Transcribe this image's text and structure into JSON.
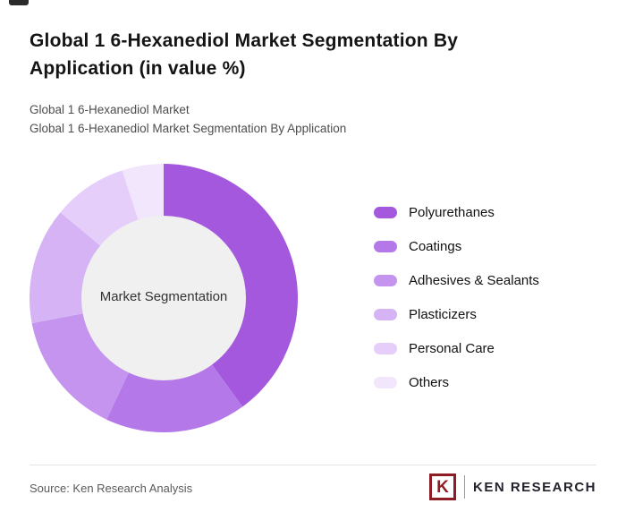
{
  "header": {
    "title": "Global 1 6-Hexanediol Market Segmentation By Application (in value %)",
    "subtitle1": "Global 1 6-Hexanediol Market",
    "subtitle2": "Global 1 6-Hexanediol Market Segmentation By Application"
  },
  "chart_data": {
    "type": "pie",
    "style": "donut",
    "title": "Global 1 6-Hexanediol Market Segmentation By Application (in value %)",
    "center_label": "Market Segmentation",
    "categories": [
      "Polyurethanes",
      "Coatings",
      "Adhesives & Sealants",
      "Plasticizers",
      "Personal Care",
      "Others"
    ],
    "values": [
      40,
      17,
      15,
      14,
      9,
      5
    ],
    "values_note": "estimated from arc angles; no numeric labels shown in image",
    "colors": [
      "#a458dd",
      "#b478e8",
      "#c494ef",
      "#d5b3f5",
      "#e5cef9",
      "#f2e6fc"
    ],
    "center_fill": "#f0f0f0",
    "start_angle_deg": 0,
    "direction": "clockwise",
    "inner_radius_ratio": 0.61,
    "legend_position": "right"
  },
  "footer": {
    "source": "Source: Ken Research Analysis",
    "logo": {
      "letter": "K",
      "brand": "KEN RESEARCH"
    }
  }
}
